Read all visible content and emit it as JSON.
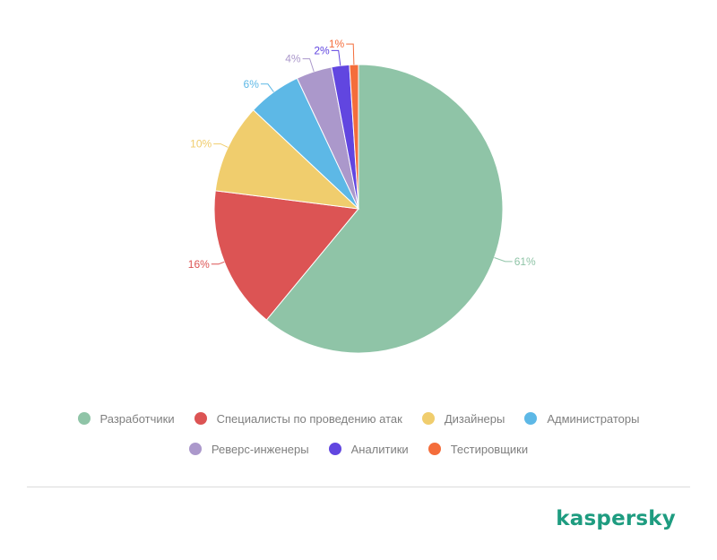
{
  "chart_data": {
    "type": "pie",
    "title": "",
    "slices": [
      {
        "label": "Разработчики",
        "value": 61,
        "display": "61%",
        "color": "#8fc4a7"
      },
      {
        "label": "Специалисты по проведению атак",
        "value": 16,
        "display": "16%",
        "color": "#dc5454"
      },
      {
        "label": "Дизайнеры",
        "value": 10,
        "display": "10%",
        "color": "#f0cd6d"
      },
      {
        "label": "Администраторы",
        "value": 6,
        "display": "6%",
        "color": "#5db8e6"
      },
      {
        "label": "Реверс-инженеры",
        "value": 4,
        "display": "4%",
        "color": "#ab98cb"
      },
      {
        "label": "Аналитики",
        "value": 2,
        "display": "2%",
        "color": "#6146e0"
      },
      {
        "label": "Тестировщики",
        "value": 1,
        "display": "1%",
        "color": "#f46d3b"
      }
    ],
    "legend_position": "bottom"
  },
  "brand": {
    "logo_text": "kaspersky",
    "logo_color": "#1e9c80"
  }
}
